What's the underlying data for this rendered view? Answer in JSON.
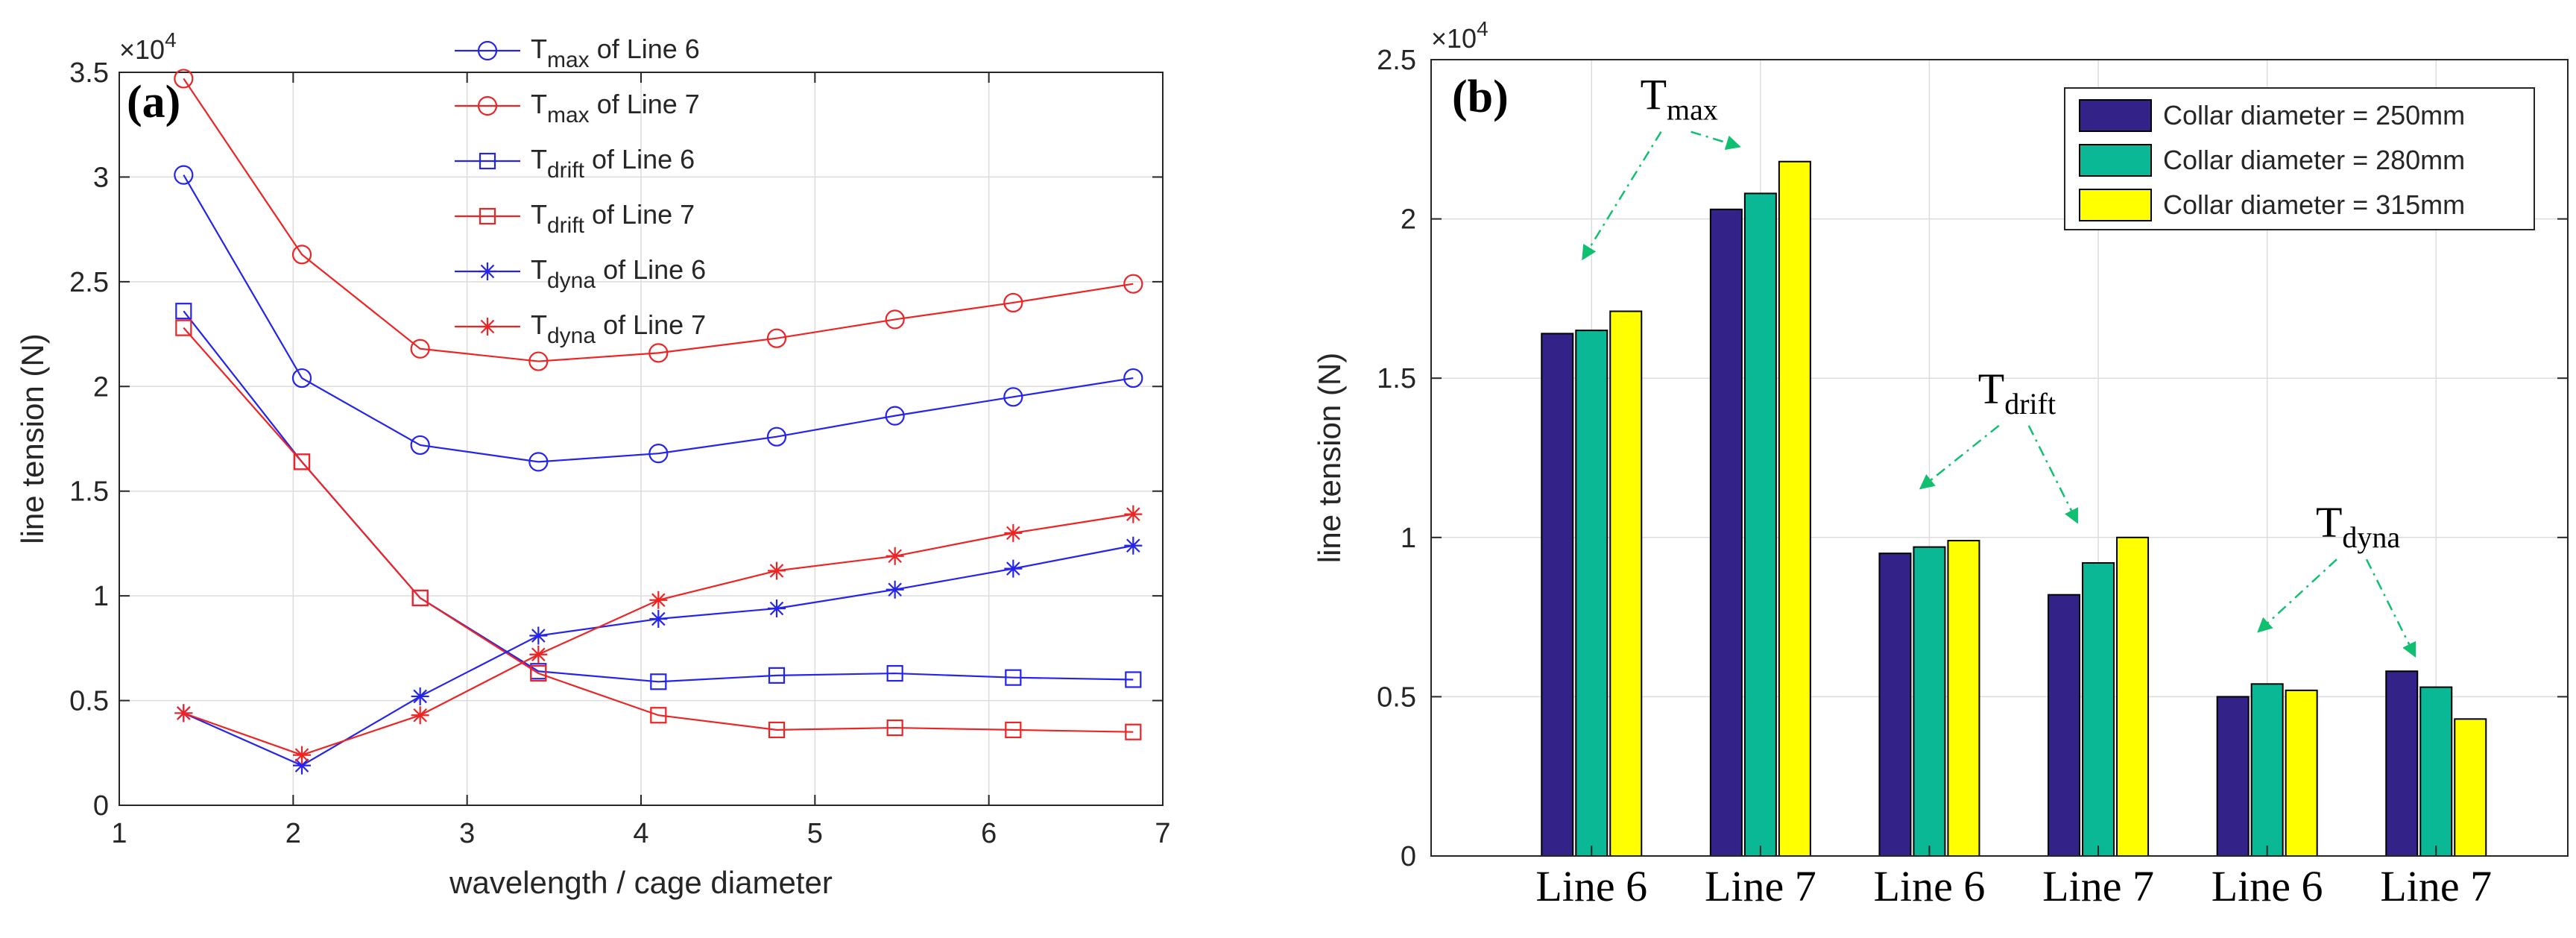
{
  "chart_data": [
    {
      "type": "line",
      "panel_label": "(a)",
      "xlabel": "wavelength / cage diameter",
      "ylabel": "line tension (N)",
      "exponent": {
        "base": "×10",
        "power": "4"
      },
      "xlim": [
        1,
        7
      ],
      "ylim": [
        0,
        3.5
      ],
      "xticks": [
        1,
        2,
        3,
        4,
        5,
        6,
        7
      ],
      "yticks": [
        0,
        0.5,
        1,
        1.5,
        2,
        2.5,
        3,
        3.5
      ],
      "xtick_labels": [
        "1",
        "2",
        "3",
        "4",
        "5",
        "6",
        "7"
      ],
      "ytick_labels": [
        "0",
        "0.5",
        "1",
        "1.5",
        "2",
        "2.5",
        "3",
        "3.5"
      ],
      "grid": true,
      "legend_position": "top-center",
      "x": [
        1.37,
        2.05,
        2.73,
        3.41,
        4.1,
        4.78,
        5.46,
        6.14,
        6.83
      ],
      "series": [
        {
          "main": "T",
          "sub": "max",
          "suffix": " of Line 6",
          "color": "#2424ee",
          "marker": "circle",
          "values": [
            3.01,
            2.04,
            1.72,
            1.64,
            1.68,
            1.76,
            1.86,
            1.95,
            2.04
          ]
        },
        {
          "main": "T",
          "sub": "max",
          "suffix": " of Line 7",
          "color": "#ee2424",
          "marker": "circle",
          "values": [
            3.47,
            2.63,
            2.18,
            2.12,
            2.16,
            2.23,
            2.32,
            2.4,
            2.49
          ]
        },
        {
          "main": "T",
          "sub": "drift",
          "suffix": " of Line 6",
          "color": "#2424ee",
          "marker": "square",
          "values": [
            2.36,
            1.64,
            0.99,
            0.64,
            0.59,
            0.62,
            0.63,
            0.61,
            0.6
          ]
        },
        {
          "main": "T",
          "sub": "drift",
          "suffix": " of Line 7",
          "color": "#ee2424",
          "marker": "square",
          "values": [
            2.28,
            1.64,
            0.99,
            0.63,
            0.43,
            0.36,
            0.37,
            0.36,
            0.35
          ]
        },
        {
          "main": "T",
          "sub": "dyna",
          "suffix": " of Line 6",
          "color": "#2424ee",
          "marker": "star",
          "values": [
            0.44,
            0.19,
            0.52,
            0.81,
            0.89,
            0.94,
            1.03,
            1.13,
            1.24
          ]
        },
        {
          "main": "T",
          "sub": "dyna",
          "suffix": " of Line 7",
          "color": "#ee2424",
          "marker": "star",
          "values": [
            0.44,
            0.24,
            0.43,
            0.72,
            0.98,
            1.12,
            1.19,
            1.3,
            1.39
          ]
        }
      ]
    },
    {
      "type": "bar",
      "panel_label": "(b)",
      "xlabel": "",
      "ylabel": "line tension (N)",
      "exponent": {
        "base": "×10",
        "power": "4"
      },
      "ylim": [
        0,
        2.5
      ],
      "yticks": [
        0,
        0.5,
        1,
        1.5,
        2,
        2.5
      ],
      "ytick_labels": [
        "0",
        "0.5",
        "1",
        "1.5",
        "2",
        "2.5"
      ],
      "grid": true,
      "legend_position": "top-right",
      "categories": [
        "Line 6",
        "Line 7",
        "Line 6",
        "Line 7",
        "Line 6",
        "Line 7"
      ],
      "series": [
        {
          "name": "Collar diameter = 250mm",
          "color": "#332288",
          "values": [
            1.64,
            2.03,
            0.95,
            0.82,
            0.5,
            0.58
          ]
        },
        {
          "name": "Collar diameter = 280mm",
          "color": "#0bb895",
          "values": [
            1.65,
            2.08,
            0.97,
            0.92,
            0.54,
            0.53
          ]
        },
        {
          "name": "Collar diameter = 315mm",
          "color": "#ffff00",
          "values": [
            1.71,
            2.18,
            0.99,
            1.0,
            0.52,
            0.43
          ]
        }
      ],
      "annotations": [
        {
          "main": "T",
          "sub": "max",
          "groups": [
            0,
            1
          ],
          "arrow_color": "#10c070"
        },
        {
          "main": "T",
          "sub": "drift",
          "groups": [
            2,
            3
          ],
          "arrow_color": "#10c070"
        },
        {
          "main": "T",
          "sub": "dyna",
          "groups": [
            4,
            5
          ],
          "arrow_color": "#10c070"
        }
      ]
    }
  ]
}
